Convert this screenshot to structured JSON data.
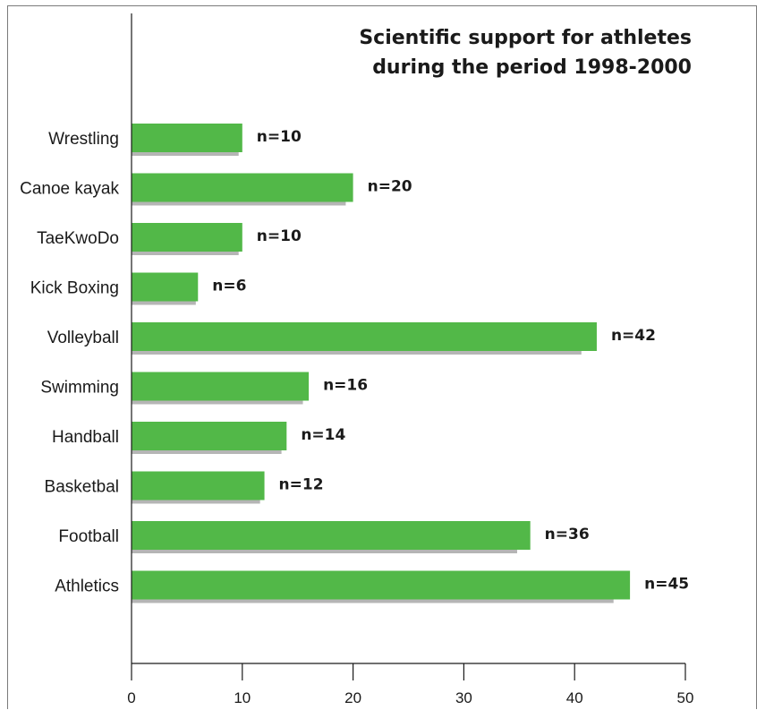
{
  "chart_data": {
    "type": "bar",
    "orientation": "horizontal",
    "title_lines": [
      "Scientific support for athletes",
      "during the period 1998-2000"
    ],
    "categories": [
      "Wrestling",
      "Canoe kayak",
      "TaeKwoDo",
      "Kick Boxing",
      "Volleyball",
      "Swimming",
      "Handball",
      "Basketbal",
      "Football",
      "Athletics"
    ],
    "values": [
      10,
      20,
      10,
      6,
      42,
      16,
      14,
      12,
      36,
      45
    ],
    "data_labels": [
      "n=10",
      "n=20",
      "n=10",
      "n=6",
      "n=42",
      "n=16",
      "n=14",
      "n=12",
      "n=36",
      "n=45"
    ],
    "xlim": [
      0,
      50
    ],
    "xticks": [
      0,
      10,
      20,
      30,
      40,
      50
    ],
    "xtick_labels": [
      "0",
      "10",
      "20",
      "30",
      "40",
      "50"
    ],
    "grid": false,
    "colors": {
      "bar": "#52b848",
      "shadow": "#b5b5b5",
      "axis": "#1a1a1a",
      "text": "#1a1a1a"
    }
  }
}
